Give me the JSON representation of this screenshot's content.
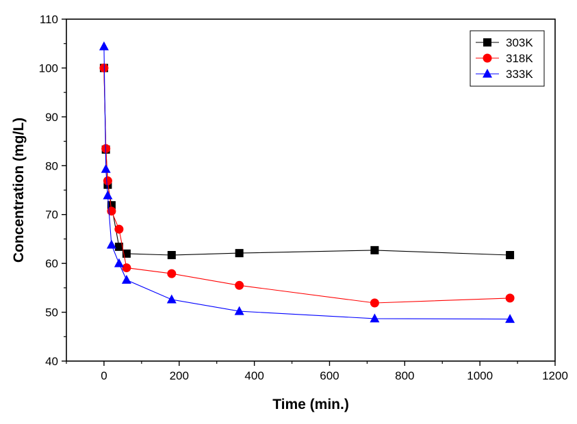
{
  "chart_data": {
    "type": "line",
    "title": "",
    "xlabel": "Time (min.)",
    "ylabel": "Concentration (mg/L)",
    "xlim": [
      -100,
      1200
    ],
    "ylim": [
      40,
      110
    ],
    "xticks": [
      0,
      200,
      400,
      600,
      800,
      1000,
      1200
    ],
    "yticks": [
      40,
      50,
      60,
      70,
      80,
      90,
      100,
      110
    ],
    "legend_position": "top-right",
    "grid": false,
    "series": [
      {
        "name": "303K",
        "color": "#000000",
        "marker": "square",
        "x": [
          0,
          5,
          10,
          20,
          40,
          60,
          180,
          360,
          720,
          1080
        ],
        "y": [
          100,
          83.3,
          76.1,
          71.9,
          63.4,
          62.0,
          61.7,
          62.1,
          62.7,
          61.7
        ]
      },
      {
        "name": "318K",
        "color": "#ff0000",
        "marker": "circle",
        "x": [
          0,
          5,
          10,
          20,
          40,
          60,
          180,
          360,
          720,
          1080
        ],
        "y": [
          100,
          83.5,
          76.9,
          70.7,
          67.0,
          59.1,
          57.9,
          55.5,
          51.9,
          52.9
        ]
      },
      {
        "name": "333K",
        "color": "#0000ff",
        "marker": "triangle",
        "x": [
          0,
          5,
          10,
          20,
          40,
          60,
          180,
          360,
          720,
          1080
        ],
        "y": [
          104.4,
          79.3,
          73.9,
          63.8,
          60.0,
          56.6,
          52.6,
          50.2,
          48.7,
          48.6
        ]
      }
    ]
  }
}
